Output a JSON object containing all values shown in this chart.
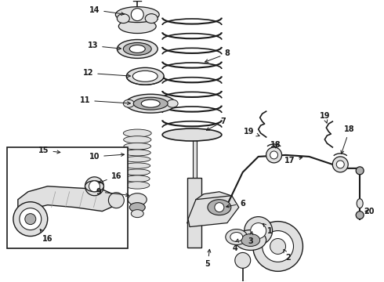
{
  "bg_color": "#ffffff",
  "line_color": "#1a1a1a",
  "figsize": [
    4.9,
    3.6
  ],
  "dpi": 100,
  "gray_fill": "#c8c8c8",
  "light_gray": "#e0e0e0",
  "mid_gray": "#b0b0b0"
}
